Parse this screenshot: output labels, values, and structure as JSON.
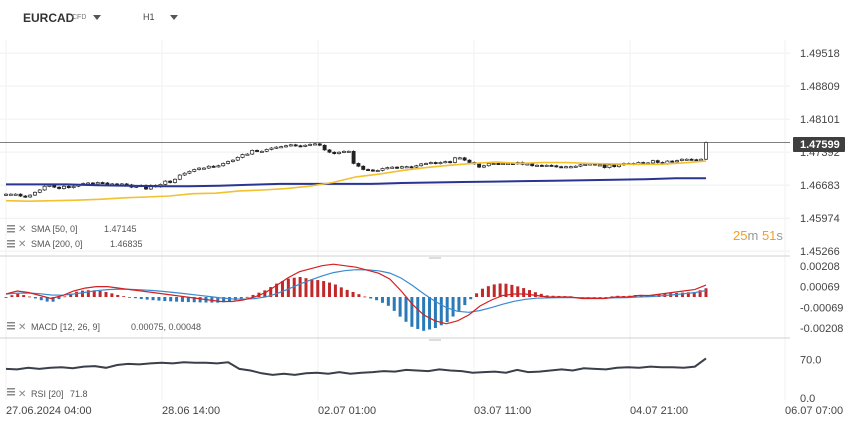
{
  "toolbar": {
    "symbol": "EURCAD",
    "instrument_type": "CFD",
    "timeframe": "H1"
  },
  "indicators": {
    "sma50": {
      "label": "SMA [50, 0]",
      "value": "1.47145"
    },
    "sma200": {
      "label": "SMA [200, 0]",
      "value": "1.46835"
    },
    "macd": {
      "label": "MACD [12, 26, 9]",
      "value": "0.00075,  0.00048"
    },
    "rsi": {
      "label": "RSI [20]",
      "value": "71.8"
    }
  },
  "countdown": {
    "minutes": "25",
    "m": "m",
    "seconds": "51",
    "s": "s"
  },
  "colors": {
    "sma50": "#f2c12e",
    "sma200": "#2a3590",
    "macd_line": "#d42020",
    "signal_line": "#3a8ad0",
    "hist_pos": "#c0282a",
    "hist_neg": "#2a7ab8",
    "rsi": "#3a3f4a",
    "price_line": "#555555",
    "price_label_bg": "#3f3f3f"
  },
  "chart_data": {
    "type": "candlestick",
    "symbol": "EURCAD",
    "price_axis": {
      "ticks": [
        "1.49518",
        "1.48809",
        "1.48101",
        "1.47392",
        "1.46683",
        "1.45974",
        "1.45266"
      ],
      "ylim": [
        1.4527,
        1.4952
      ]
    },
    "current_price": "1.47599",
    "time_axis": {
      "ticks": [
        "27.06.2024  04:00",
        "28.06  14:00",
        "02.07  01:00",
        "03.07  11:00",
        "04.07  21:00",
        "06.07  07:00"
      ]
    },
    "close": [
      1.4649,
      1.4649,
      1.4649,
      1.4645,
      1.4643,
      1.4647,
      1.4653,
      1.4658,
      1.4666,
      1.4668,
      1.4664,
      1.4661,
      1.4666,
      1.4663,
      1.4666,
      1.4669,
      1.4672,
      1.4673,
      1.4671,
      1.4674,
      1.4673,
      1.467,
      1.4671,
      1.4669,
      1.4671,
      1.4669,
      1.4664,
      1.4666,
      1.4668,
      1.466,
      1.4668,
      1.4665,
      1.467,
      1.4677,
      1.4674,
      1.4681,
      1.469,
      1.4694,
      1.4698,
      1.4702,
      1.4705,
      1.4705,
      1.4709,
      1.4708,
      1.471,
      1.4715,
      1.4719,
      1.4722,
      1.4728,
      1.4734,
      1.4735,
      1.4743,
      1.4741,
      1.4741,
      1.4745,
      1.4748,
      1.475,
      1.4751,
      1.4753,
      1.4755,
      1.4753,
      1.4752,
      1.4754,
      1.4756,
      1.4757,
      1.4754,
      1.4744,
      1.4739,
      1.4736,
      1.4739,
      1.4741,
      1.4741,
      1.4715,
      1.4709,
      1.4702,
      1.4701,
      1.4699,
      1.47,
      1.4704,
      1.4706,
      1.4707,
      1.4705,
      1.4708,
      1.4708,
      1.4707,
      1.471,
      1.4714,
      1.4715,
      1.4717,
      1.4715,
      1.4717,
      1.4719,
      1.4717,
      1.4727,
      1.4727,
      1.4722,
      1.4717,
      1.4714,
      1.4707,
      1.471,
      1.4715,
      1.4715,
      1.4714,
      1.4715,
      1.4715,
      1.4714,
      1.4717,
      1.4713,
      1.4714,
      1.471,
      1.4711,
      1.471,
      1.4711,
      1.471,
      1.4708,
      1.4707,
      1.4708,
      1.4708,
      1.4709,
      1.4712,
      1.4713,
      1.4714,
      1.4712,
      1.4712,
      1.4706,
      1.4712,
      1.4708,
      1.4712,
      1.4715,
      1.4715,
      1.4713,
      1.4717,
      1.4715,
      1.4716,
      1.4721,
      1.4717,
      1.4714,
      1.472,
      1.4719,
      1.4721,
      1.4724,
      1.4724,
      1.4723,
      1.4721,
      1.4724,
      1.476
    ],
    "sma50": [
      1.4635,
      1.4634,
      1.4635,
      1.4636,
      1.4638,
      1.4641,
      1.4643,
      1.4645,
      1.465,
      1.4651,
      1.4656,
      1.4658,
      1.4661,
      1.4666,
      1.4674,
      1.4686,
      1.4692,
      1.47,
      1.4706,
      1.4711,
      1.4715,
      1.4718,
      1.4715,
      1.4717,
      1.4717,
      1.4715,
      1.4714,
      1.4713,
      1.4713,
      1.4716,
      1.472
    ],
    "sma200": [
      1.467,
      1.467,
      1.467,
      1.4668,
      1.4667,
      1.4666,
      1.4666,
      1.4667,
      1.4669,
      1.4671,
      1.4671,
      1.4671,
      1.4671,
      1.4673,
      1.4674,
      1.4675,
      1.4676,
      1.4677,
      1.4678,
      1.4679,
      1.468,
      1.4681,
      1.4683,
      1.4683
    ],
    "macd": {
      "axis_ticks": [
        "0.00208",
        "0.00069",
        "-0.00069",
        "-0.00208"
      ],
      "ylim": [
        -0.00235,
        0.00235
      ],
      "current_macd": 0.00075,
      "current_signal": 0.00048
    },
    "rsi": {
      "axis_ticks": [
        "70.0",
        "0.0"
      ],
      "ylim": [
        0,
        100
      ],
      "current": 71.8
    }
  }
}
